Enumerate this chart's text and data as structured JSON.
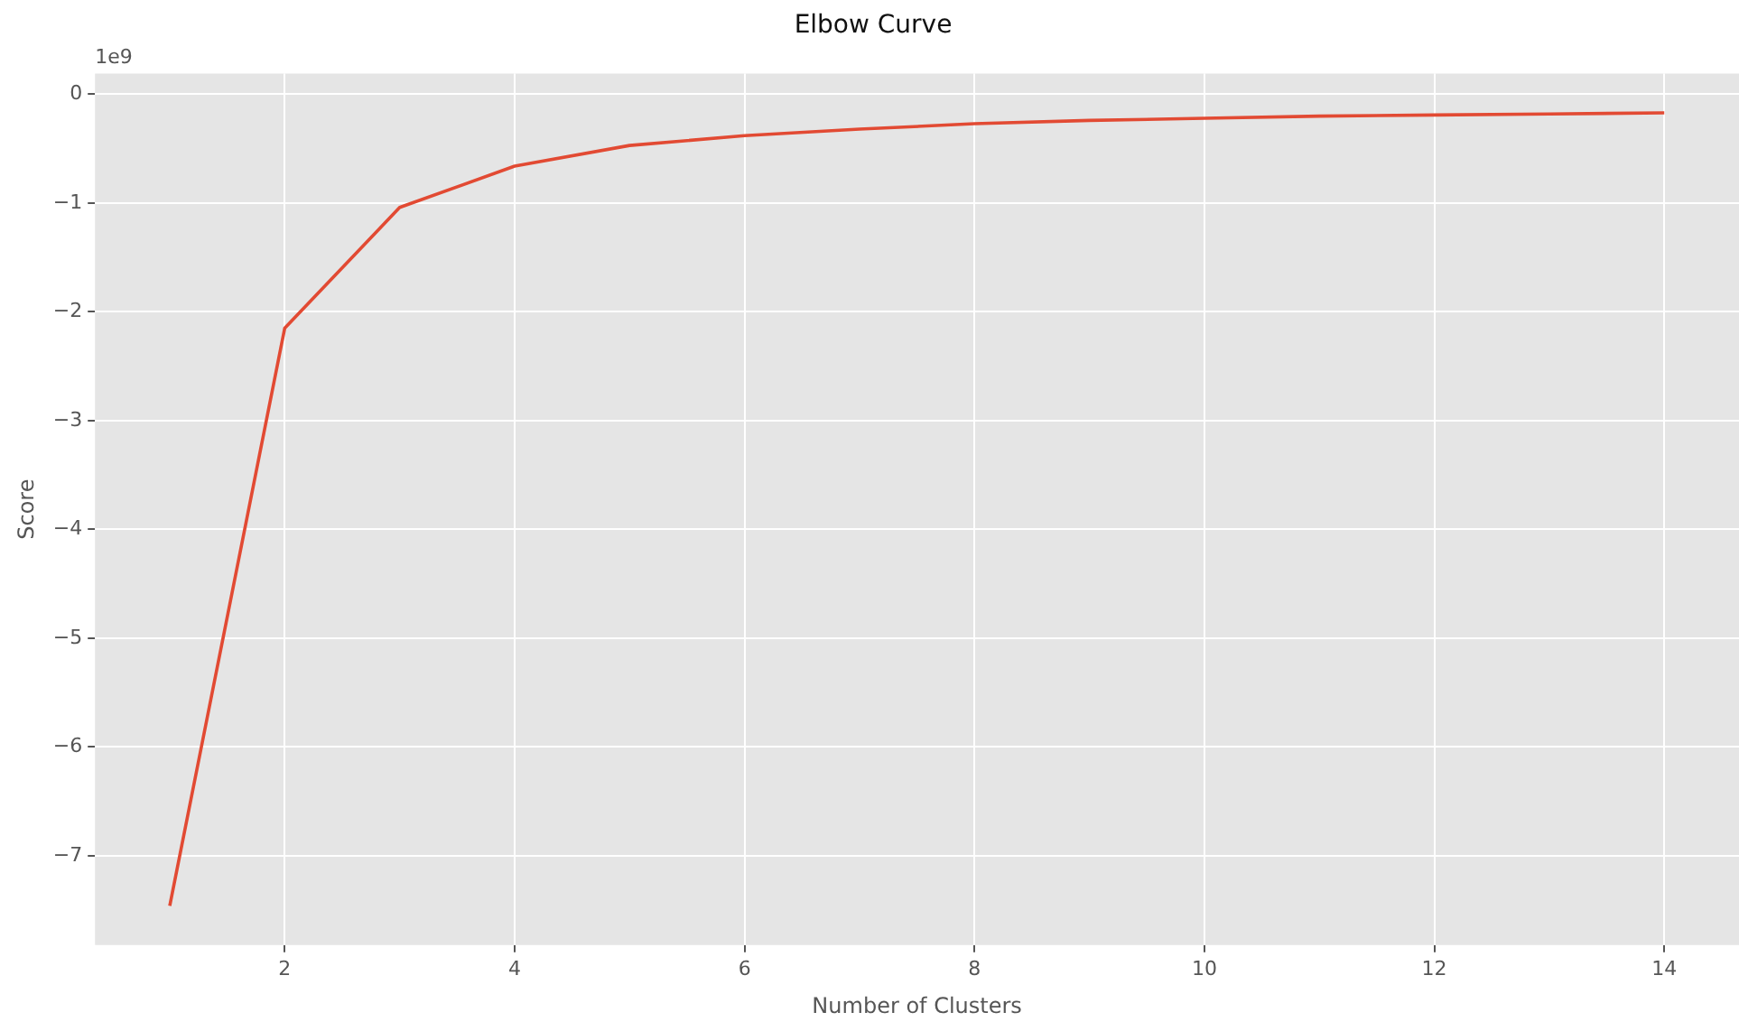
{
  "chart_data": {
    "type": "line",
    "title": "Elbow Curve",
    "xlabel": "Number of Clusters",
    "ylabel": "Score",
    "annotations": [
      "1e9"
    ],
    "x": [
      1,
      2,
      3,
      4,
      5,
      6,
      7,
      8,
      9,
      10,
      11,
      12,
      13,
      14
    ],
    "series": [
      {
        "color": "#e24a33",
        "values": [
          -7.46,
          -2.15,
          -1.04,
          -0.66,
          -0.47,
          -0.38,
          -0.32,
          -0.27,
          -0.24,
          -0.22,
          -0.2,
          -0.19,
          -0.18,
          -0.17
        ]
      }
    ],
    "xlim": [
      0.35,
      14.65
    ],
    "xticks": [
      2,
      4,
      6,
      8,
      10,
      12,
      14
    ],
    "ylim": [
      -7.82,
      0.19
    ],
    "yticks": [
      -7,
      -6,
      -5,
      -4,
      -3,
      -2,
      -1,
      0
    ],
    "grid": true,
    "legend": false,
    "marker": "none",
    "line_style": "solid"
  }
}
